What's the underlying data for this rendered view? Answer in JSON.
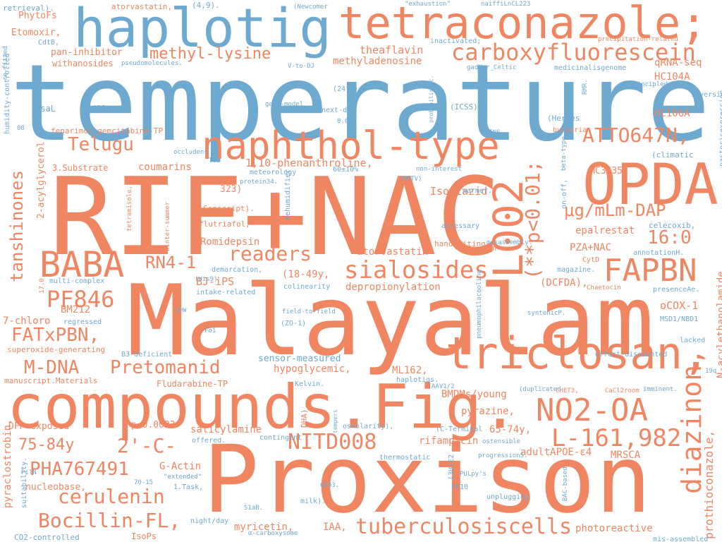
{
  "colors": {
    "orange": "#ef8661",
    "blue": "#6ea9d0",
    "background": "#ffffff"
  },
  "words": [
    {
      "text": "temperature-",
      "color": "blue"
    },
    {
      "text": "RIF+NAC",
      "color": "orange"
    },
    {
      "text": "Malayalam",
      "color": "orange"
    },
    {
      "text": "Proxison",
      "color": "orange"
    },
    {
      "text": "compounds.Fig.",
      "color": "orange"
    },
    {
      "text": "haplotig",
      "color": "blue"
    },
    {
      "text": "tetraconazole;",
      "color": "orange"
    },
    {
      "text": "OPDA",
      "color": "orange"
    },
    {
      "text": "L002",
      "color": "orange"
    },
    {
      "text": "triclosan,",
      "color": "orange"
    },
    {
      "text": "naphthol-type",
      "color": "orange"
    },
    {
      "text": "NO2-OA",
      "color": "orange"
    },
    {
      "text": "BABA",
      "color": "orange"
    },
    {
      "text": "FAPBN",
      "color": "orange"
    },
    {
      "text": "diazinon,",
      "color": "orange"
    },
    {
      "text": "carboxyfluorescein",
      "color": "orange"
    },
    {
      "text": "L-161,982",
      "color": "orange"
    },
    {
      "text": "tuberculosiscells",
      "color": "orange"
    },
    {
      "text": "PF846",
      "color": "orange"
    },
    {
      "text": "sialosides",
      "color": "orange"
    },
    {
      "text": "ATTO647N,",
      "color": "orange"
    },
    {
      "text": "(**p<0.01;",
      "color": "orange"
    },
    {
      "text": "NITD008",
      "color": "orange"
    },
    {
      "text": "PHA767491",
      "color": "orange"
    },
    {
      "text": "Pretomanid",
      "color": "orange"
    },
    {
      "text": "Bocillin-FL,",
      "color": "orange"
    },
    {
      "text": "cerulenin",
      "color": "orange"
    },
    {
      "text": "μg/mLm-DAP",
      "color": "orange"
    },
    {
      "text": "16:0",
      "color": "orange"
    },
    {
      "text": "2'-C-",
      "color": "orange"
    },
    {
      "text": "FATxPBN,",
      "color": "orange"
    },
    {
      "text": "M-DNA",
      "color": "orange"
    },
    {
      "text": "Telugu",
      "color": "orange"
    },
    {
      "text": "readers",
      "color": "orange"
    },
    {
      "text": "RN4-1",
      "color": "orange"
    },
    {
      "text": "tanshinones",
      "color": "orange"
    },
    {
      "text": "methyl-lysine",
      "color": "orange"
    },
    {
      "text": "75-84y",
      "color": "orange"
    },
    {
      "text": "prothioconazole,",
      "color": "orange"
    },
    {
      "text": "N-acylethanolamide",
      "color": "orange"
    },
    {
      "text": "theaflavin",
      "color": "orange"
    },
    {
      "text": "methyladenosine",
      "color": "orange"
    },
    {
      "text": "qRNA-seq",
      "color": "orange"
    },
    {
      "text": "HC104A",
      "color": "orange"
    },
    {
      "text": "HC106A",
      "color": "orange"
    },
    {
      "text": "MC3935",
      "color": "orange"
    },
    {
      "text": "1,10-phenanthroline,",
      "color": "orange"
    },
    {
      "text": "coumarins",
      "color": "orange"
    },
    {
      "text": "3.Substrate",
      "color": "orange"
    },
    {
      "text": "Isoniazid",
      "color": "orange"
    },
    {
      "text": "Romidepsin",
      "color": "orange"
    },
    {
      "text": "epalrestat",
      "color": "orange"
    },
    {
      "text": "PZA+NAC",
      "color": "orange"
    },
    {
      "text": "atorvastatin",
      "color": "orange"
    },
    {
      "text": "depropionylation",
      "color": "orange"
    },
    {
      "text": "BJ-iPS",
      "color": "orange"
    },
    {
      "text": "(18-49y,",
      "color": "orange"
    },
    {
      "text": "(DCFDA),",
      "color": "orange"
    },
    {
      "text": "oCOX-1",
      "color": "orange"
    },
    {
      "text": "BM212",
      "color": "orange"
    },
    {
      "text": "7-chloro",
      "color": "orange"
    },
    {
      "text": "hypoglycemic,",
      "color": "orange"
    },
    {
      "text": "ML162,",
      "color": "orange"
    },
    {
      "text": "BMDMs/young",
      "color": "orange"
    },
    {
      "text": "pyrazine,",
      "color": "orange"
    },
    {
      "text": "65-74y,",
      "color": "orange"
    },
    {
      "text": "salicylamine",
      "color": "orange"
    },
    {
      "text": "rifampicin",
      "color": "orange"
    },
    {
      "text": "adultAPOE-ε4",
      "color": "orange"
    },
    {
      "text": "MRSCA",
      "color": "orange"
    },
    {
      "text": "myricetin,",
      "color": "orange"
    },
    {
      "text": "IAA,",
      "color": "orange"
    },
    {
      "text": "photoreactive",
      "color": "orange"
    },
    {
      "text": "nucleobase,",
      "color": "orange"
    },
    {
      "text": "G-Actin",
      "color": "orange"
    },
    {
      "text": "Fludarabine-TP",
      "color": "orange"
    },
    {
      "text": "sensor-measured",
      "color": "blue"
    },
    {
      "text": "p=0.0023",
      "color": "orange"
    },
    {
      "text": "DFP-exposed",
      "color": "orange"
    },
    {
      "text": "2-acylglycerol",
      "color": "orange"
    },
    {
      "text": "PhytoFs",
      "color": "orange"
    },
    {
      "text": "Etomoxir,",
      "color": "orange"
    },
    {
      "text": "pan-inhibitor",
      "color": "orange"
    },
    {
      "text": "withanosides",
      "color": "orange"
    },
    {
      "text": "pseudomolecules.",
      "color": "blue"
    },
    {
      "text": "fenarimol_gemcitabine-TP",
      "color": "orange"
    },
    {
      "text": "flutriafol,",
      "color": "orange"
    },
    {
      "text": "handwriting",
      "color": "orange"
    },
    {
      "text": "netropsin",
      "color": "orange"
    },
    {
      "text": "superoxide-generating",
      "color": "orange"
    },
    {
      "text": "manuscript.Materials",
      "color": "orange"
    },
    {
      "text": "pyraclostrobin,",
      "color": "orange"
    },
    {
      "text": "tetramisole,",
      "color": "orange"
    },
    {
      "text": "Genscript).",
      "color": "orange"
    },
    {
      "text": "323)",
      "color": "orange"
    },
    {
      "text": "winter-summer",
      "color": "orange"
    },
    {
      "text": "dehumidifier",
      "color": "blue"
    },
    {
      "text": "60±10%",
      "color": "blue"
    },
    {
      "text": "meteorology",
      "color": "blue"
    },
    {
      "text": "lod",
      "color": "blue"
    },
    {
      "text": "occludens",
      "color": "blue"
    },
    {
      "text": "PsaL",
      "color": "blue"
    },
    {
      "text": "chiller",
      "color": "blue"
    },
    {
      "text": "gene-model",
      "color": "blue"
    },
    {
      "text": "next-day",
      "color": "blue"
    },
    {
      "text": "(24°C)",
      "color": "blue"
    },
    {
      "text": "(ICSS)",
      "color": "blue"
    },
    {
      "text": "(Herpes",
      "color": "blue"
    },
    {
      "text": "GINS.",
      "color": "blue"
    },
    {
      "text": "bursaria",
      "color": "orange"
    },
    {
      "text": "beta-type",
      "color": "blue"
    },
    {
      "text": "(climatic",
      "color": "blue"
    },
    {
      "text": "celecoxib,",
      "color": "blue"
    },
    {
      "text": "annotationH.",
      "color": "blue"
    },
    {
      "text": "CytD",
      "color": "orange"
    },
    {
      "text": "magazine.",
      "color": "blue"
    },
    {
      "text": "Chaetocin",
      "color": "orange"
    },
    {
      "text": "presenceAe.",
      "color": "blue"
    },
    {
      "text": "MSD1/NBD1",
      "color": "blue"
    },
    {
      "text": "lacked",
      "color": "blue"
    },
    {
      "text": "19q",
      "color": "blue"
    },
    {
      "text": "imminent.",
      "color": "blue"
    },
    {
      "text": "CaCl2room",
      "color": "orange"
    },
    {
      "text": "CHET3,",
      "color": "orange"
    },
    {
      "text": "(duplicated",
      "color": "blue"
    },
    {
      "text": "effort-discounted",
      "color": "blue"
    },
    {
      "text": "syntenicP.",
      "color": "blue"
    },
    {
      "text": "pneumophilacooling",
      "color": "blue"
    },
    {
      "text": "field-to-field",
      "color": "blue"
    },
    {
      "text": "(ZO-1)",
      "color": "blue"
    },
    {
      "text": "colinearity",
      "color": "blue"
    },
    {
      "text": "intake-related",
      "color": "blue"
    },
    {
      "text": "(His9)",
      "color": "blue"
    },
    {
      "text": "demarcation,",
      "color": "blue"
    },
    {
      "text": "multi-complex",
      "color": "blue"
    },
    {
      "text": "B3-deficient",
      "color": "blue"
    },
    {
      "text": "regressed",
      "color": "blue"
    },
    {
      "text": "DHW",
      "color": "blue"
    },
    {
      "text": "Fo1",
      "color": "blue"
    },
    {
      "text": "Kelvin.",
      "color": "blue"
    },
    {
      "text": "haplotigs.",
      "color": "blue"
    },
    {
      "text": "AAV1/2",
      "color": "blue"
    },
    {
      "text": "DHA),",
      "color": "orange"
    },
    {
      "text": "osmolarity),",
      "color": "blue"
    },
    {
      "text": "(C-Terminal",
      "color": "blue"
    },
    {
      "text": "ostensible",
      "color": "blue"
    },
    {
      "text": "contingent",
      "color": "blue"
    },
    {
      "text": "offered.",
      "color": "blue"
    },
    {
      "text": "thermostatic",
      "color": "blue"
    },
    {
      "text": "progressionS.",
      "color": "blue"
    },
    {
      "text": "PULpy's",
      "color": "blue"
    },
    {
      "text": "BAC-based",
      "color": "blue"
    },
    {
      "text": "[3H]E2",
      "color": "blue"
    },
    {
      "text": "FR10",
      "color": "blue"
    },
    {
      "text": "6803.",
      "color": "blue"
    },
    {
      "text": "milk).",
      "color": "blue"
    },
    {
      "text": "unplugging",
      "color": "blue"
    },
    {
      "text": "tempers",
      "color": "blue"
    },
    {
      "text": "S1aB.",
      "color": "blue"
    },
    {
      "text": "night/day",
      "color": "blue"
    },
    {
      "text": "α-carboxysome",
      "color": "blue"
    },
    {
      "text": "IsoPs",
      "color": "orange"
    },
    {
      "text": "CO2-controlled",
      "color": "blue"
    },
    {
      "text": "1.Task,",
      "color": "blue"
    },
    {
      "text": "\"extended\"",
      "color": "blue"
    },
    {
      "text": "70-15",
      "color": "blue"
    },
    {
      "text": "PilN",
      "color": "blue"
    },
    {
      "text": "suitability.",
      "color": "blue"
    },
    {
      "text": "mis-assembled",
      "color": "blue"
    },
    {
      "text": "retrieval).",
      "color": "blue"
    },
    {
      "text": "atorvastatin,",
      "color": "orange"
    },
    {
      "text": "(4,9).",
      "color": "blue"
    },
    {
      "text": "(Newcomer",
      "color": "blue"
    },
    {
      "text": "\"exhaustion\"",
      "color": "blue"
    },
    {
      "text": "naiffiLnCL223",
      "color": "blue"
    },
    {
      "text": "re-fitted",
      "color": "blue"
    },
    {
      "text": "CdtB,",
      "color": "blue"
    },
    {
      "text": "inactivated;",
      "color": "blue"
    },
    {
      "text": "precipitation-related",
      "color": "orange"
    },
    {
      "text": "V-to-DJ",
      "color": "blue"
    },
    {
      "text": "gadMor_Celtic",
      "color": "blue"
    },
    {
      "text": "medicinalisgenome",
      "color": "blue"
    },
    {
      "text": "inversion).",
      "color": "blue"
    },
    {
      "text": "RMR.",
      "color": "blue"
    },
    {
      "text": "unprincipled",
      "color": "blue"
    },
    {
      "text": "probabilistic.",
      "color": "blue"
    },
    {
      "text": "0.6ml",
      "color": "blue"
    },
    {
      "text": "humidity-controlled",
      "color": "blue"
    },
    {
      "text": "08",
      "color": "blue"
    },
    {
      "text": "pastorisexpression",
      "color": "blue"
    },
    {
      "text": "on-off,",
      "color": "blue"
    },
    {
      "text": "(MMTV)",
      "color": "blue"
    },
    {
      "text": "non-interest",
      "color": "blue"
    },
    {
      "text": "warmer.",
      "color": "blue"
    },
    {
      "text": "protein34.",
      "color": "blue"
    },
    {
      "text": "accessary",
      "color": "blue"
    },
    {
      "text": "misassembly.",
      "color": "blue"
    },
    {
      "text": "17.0",
      "color": "orange"
    }
  ]
}
